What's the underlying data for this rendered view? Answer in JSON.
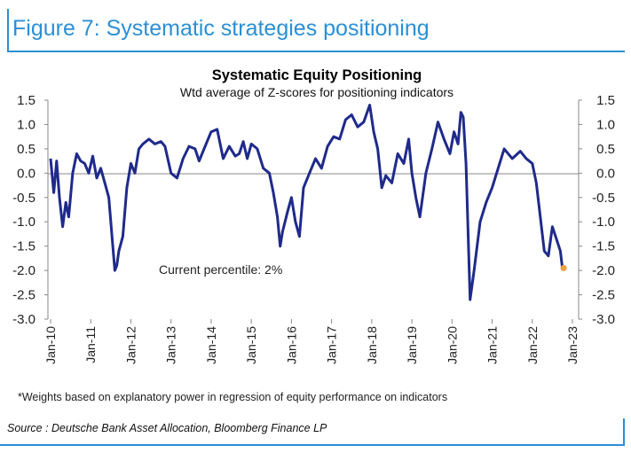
{
  "figure": {
    "title": "Figure 7: Systematic strategies positioning",
    "footnote": "*Weights based on explanatory power in regression of equity performance on indicators",
    "source": "Source : Deutsche Bank Asset Allocation, Bloomberg Finance LP"
  },
  "colors": {
    "accent": "#2b8fd6",
    "series": "#1f2a8a",
    "marker": "#f0a040",
    "axis": "#888888"
  },
  "chart_data": {
    "type": "line",
    "title": "Systematic Equity Positioning",
    "subtitle": "Wtd average of Z-scores for positioning indicators",
    "annotation": "Current percentile: 2%",
    "ylim": [
      -3.0,
      1.5
    ],
    "yticks": [
      "1.5",
      "1.0",
      "0.5",
      "0.0",
      "-0.5",
      "-1.0",
      "-1.5",
      "-2.0",
      "-2.5",
      "-3.0"
    ],
    "ytick_values": [
      1.5,
      1.0,
      0.5,
      0.0,
      -0.5,
      -1.0,
      -1.5,
      -2.0,
      -2.5,
      -3.0
    ],
    "xlim": [
      2010.0,
      2023.0
    ],
    "xticks": [
      "Jan-10",
      "Jan-11",
      "Jan-12",
      "Jan-13",
      "Jan-14",
      "Jan-15",
      "Jan-16",
      "Jan-17",
      "Jan-18",
      "Jan-19",
      "Jan-20",
      "Jan-21",
      "Jan-22",
      "Jan-23"
    ],
    "xtick_values": [
      2010,
      2011,
      2012,
      2013,
      2014,
      2015,
      2016,
      2017,
      2018,
      2019,
      2020,
      2021,
      2022,
      2023
    ],
    "series": [
      {
        "x": [
          2010.0,
          2010.08,
          2010.15,
          2010.22,
          2010.3,
          2010.38,
          2010.45,
          2010.55,
          2010.65,
          2010.75,
          2010.85,
          2010.95,
          2011.05,
          2011.15,
          2011.25,
          2011.35,
          2011.45,
          2011.55,
          2011.6,
          2011.65,
          2011.7,
          2011.8,
          2011.9,
          2012.0,
          2012.1,
          2012.2,
          2012.3,
          2012.45,
          2012.6,
          2012.75,
          2012.85,
          2013.0,
          2013.15,
          2013.3,
          2013.45,
          2013.6,
          2013.7,
          2013.85,
          2014.0,
          2014.15,
          2014.3,
          2014.45,
          2014.6,
          2014.7,
          2014.8,
          2014.9,
          2015.0,
          2015.15,
          2015.3,
          2015.45,
          2015.55,
          2015.65,
          2015.72,
          2015.78,
          2015.9,
          2016.0,
          2016.1,
          2016.2,
          2016.3,
          2016.45,
          2016.6,
          2016.75,
          2016.9,
          2017.05,
          2017.2,
          2017.35,
          2017.5,
          2017.65,
          2017.8,
          2017.95,
          2018.05,
          2018.15,
          2018.25,
          2018.35,
          2018.5,
          2018.65,
          2018.8,
          2018.92,
          2019.0,
          2019.1,
          2019.2,
          2019.35,
          2019.5,
          2019.65,
          2019.8,
          2019.95,
          2020.05,
          2020.15,
          2020.22,
          2020.28,
          2020.35,
          2020.45,
          2020.55,
          2020.7,
          2020.85,
          2021.0,
          2021.15,
          2021.3,
          2021.5,
          2021.7,
          2021.85,
          2022.0,
          2022.1,
          2022.2,
          2022.3,
          2022.4,
          2022.5,
          2022.6,
          2022.7,
          2022.75
        ],
        "values": [
          0.3,
          -0.4,
          0.25,
          -0.5,
          -1.1,
          -0.6,
          -0.9,
          0.0,
          0.4,
          0.25,
          0.2,
          0.0,
          0.35,
          -0.1,
          0.1,
          -0.2,
          -0.5,
          -1.5,
          -2.0,
          -1.9,
          -1.6,
          -1.3,
          -0.3,
          0.2,
          0.0,
          0.5,
          0.6,
          0.7,
          0.6,
          0.65,
          0.55,
          0.0,
          -0.1,
          0.3,
          0.55,
          0.5,
          0.25,
          0.55,
          0.85,
          0.9,
          0.3,
          0.55,
          0.35,
          0.4,
          0.65,
          0.3,
          0.6,
          0.5,
          0.1,
          0.0,
          -0.4,
          -0.9,
          -1.5,
          -1.2,
          -0.8,
          -0.5,
          -1.0,
          -1.3,
          -0.3,
          0.0,
          0.3,
          0.1,
          0.55,
          0.75,
          0.7,
          1.1,
          1.2,
          0.95,
          1.05,
          1.4,
          0.85,
          0.5,
          -0.3,
          -0.05,
          -0.2,
          0.4,
          0.2,
          0.7,
          0.0,
          -0.5,
          -0.9,
          0.0,
          0.5,
          1.05,
          0.7,
          0.4,
          0.85,
          0.6,
          1.25,
          1.15,
          0.2,
          -2.6,
          -2.0,
          -1.0,
          -0.6,
          -0.3,
          0.1,
          0.5,
          0.3,
          0.45,
          0.3,
          0.2,
          -0.2,
          -0.9,
          -1.6,
          -1.7,
          -1.1,
          -1.35,
          -1.6,
          -1.95
        ]
      }
    ],
    "current_marker": {
      "x": 2022.78,
      "value": -1.95
    }
  }
}
